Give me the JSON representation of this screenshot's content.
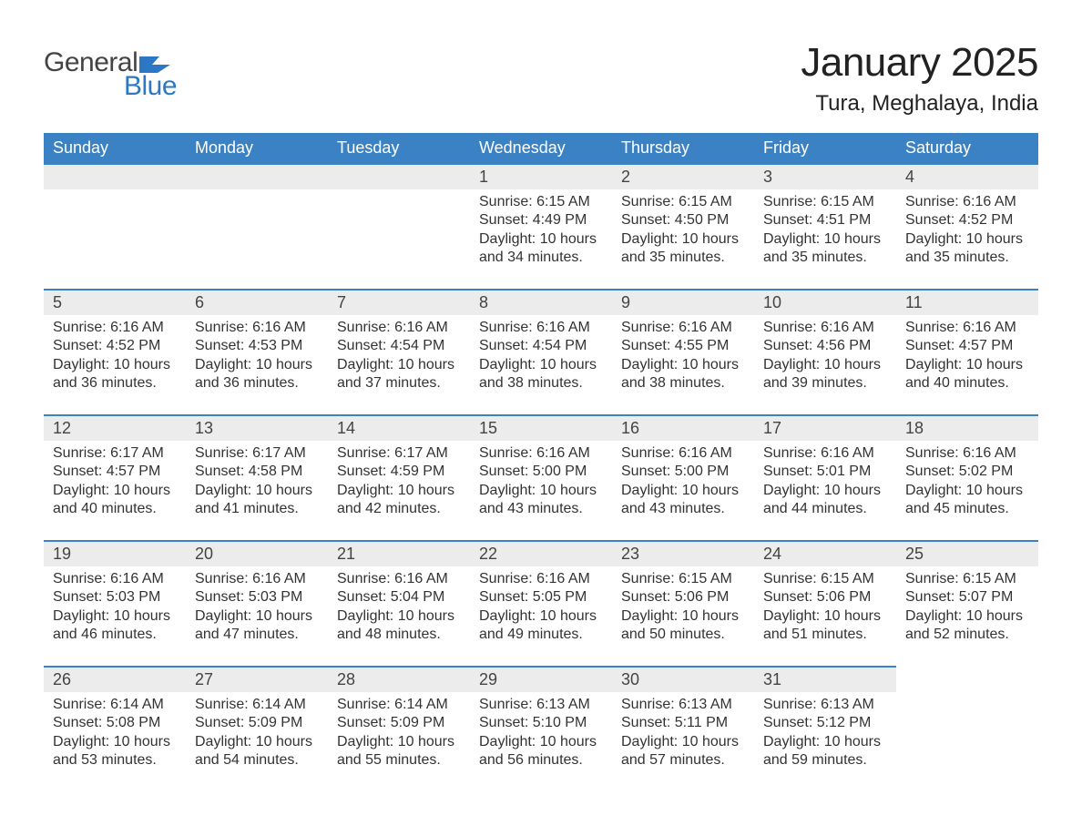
{
  "logo": {
    "word1": "General",
    "word2": "Blue",
    "accent_color": "#2d78c4",
    "text_color": "#444444"
  },
  "title": "January 2025",
  "subtitle": "Tura, Meghalaya, India",
  "colors": {
    "header_bg": "#3b82c4",
    "header_fg": "#ffffff",
    "daynum_bg": "#ececec",
    "row_border": "#3b82c4",
    "body_text": "#333333",
    "page_bg": "#ffffff"
  },
  "typography": {
    "title_fontsize": 44,
    "subtitle_fontsize": 24,
    "header_fontsize": 18,
    "daynum_fontsize": 18,
    "body_fontsize": 16
  },
  "weekdays": [
    "Sunday",
    "Monday",
    "Tuesday",
    "Wednesday",
    "Thursday",
    "Friday",
    "Saturday"
  ],
  "weeks": [
    [
      null,
      null,
      null,
      {
        "d": "1",
        "sr": "Sunrise: 6:15 AM",
        "ss": "Sunset: 4:49 PM",
        "dl1": "Daylight: 10 hours",
        "dl2": "and 34 minutes."
      },
      {
        "d": "2",
        "sr": "Sunrise: 6:15 AM",
        "ss": "Sunset: 4:50 PM",
        "dl1": "Daylight: 10 hours",
        "dl2": "and 35 minutes."
      },
      {
        "d": "3",
        "sr": "Sunrise: 6:15 AM",
        "ss": "Sunset: 4:51 PM",
        "dl1": "Daylight: 10 hours",
        "dl2": "and 35 minutes."
      },
      {
        "d": "4",
        "sr": "Sunrise: 6:16 AM",
        "ss": "Sunset: 4:52 PM",
        "dl1": "Daylight: 10 hours",
        "dl2": "and 35 minutes."
      }
    ],
    [
      {
        "d": "5",
        "sr": "Sunrise: 6:16 AM",
        "ss": "Sunset: 4:52 PM",
        "dl1": "Daylight: 10 hours",
        "dl2": "and 36 minutes."
      },
      {
        "d": "6",
        "sr": "Sunrise: 6:16 AM",
        "ss": "Sunset: 4:53 PM",
        "dl1": "Daylight: 10 hours",
        "dl2": "and 36 minutes."
      },
      {
        "d": "7",
        "sr": "Sunrise: 6:16 AM",
        "ss": "Sunset: 4:54 PM",
        "dl1": "Daylight: 10 hours",
        "dl2": "and 37 minutes."
      },
      {
        "d": "8",
        "sr": "Sunrise: 6:16 AM",
        "ss": "Sunset: 4:54 PM",
        "dl1": "Daylight: 10 hours",
        "dl2": "and 38 minutes."
      },
      {
        "d": "9",
        "sr": "Sunrise: 6:16 AM",
        "ss": "Sunset: 4:55 PM",
        "dl1": "Daylight: 10 hours",
        "dl2": "and 38 minutes."
      },
      {
        "d": "10",
        "sr": "Sunrise: 6:16 AM",
        "ss": "Sunset: 4:56 PM",
        "dl1": "Daylight: 10 hours",
        "dl2": "and 39 minutes."
      },
      {
        "d": "11",
        "sr": "Sunrise: 6:16 AM",
        "ss": "Sunset: 4:57 PM",
        "dl1": "Daylight: 10 hours",
        "dl2": "and 40 minutes."
      }
    ],
    [
      {
        "d": "12",
        "sr": "Sunrise: 6:17 AM",
        "ss": "Sunset: 4:57 PM",
        "dl1": "Daylight: 10 hours",
        "dl2": "and 40 minutes."
      },
      {
        "d": "13",
        "sr": "Sunrise: 6:17 AM",
        "ss": "Sunset: 4:58 PM",
        "dl1": "Daylight: 10 hours",
        "dl2": "and 41 minutes."
      },
      {
        "d": "14",
        "sr": "Sunrise: 6:17 AM",
        "ss": "Sunset: 4:59 PM",
        "dl1": "Daylight: 10 hours",
        "dl2": "and 42 minutes."
      },
      {
        "d": "15",
        "sr": "Sunrise: 6:16 AM",
        "ss": "Sunset: 5:00 PM",
        "dl1": "Daylight: 10 hours",
        "dl2": "and 43 minutes."
      },
      {
        "d": "16",
        "sr": "Sunrise: 6:16 AM",
        "ss": "Sunset: 5:00 PM",
        "dl1": "Daylight: 10 hours",
        "dl2": "and 43 minutes."
      },
      {
        "d": "17",
        "sr": "Sunrise: 6:16 AM",
        "ss": "Sunset: 5:01 PM",
        "dl1": "Daylight: 10 hours",
        "dl2": "and 44 minutes."
      },
      {
        "d": "18",
        "sr": "Sunrise: 6:16 AM",
        "ss": "Sunset: 5:02 PM",
        "dl1": "Daylight: 10 hours",
        "dl2": "and 45 minutes."
      }
    ],
    [
      {
        "d": "19",
        "sr": "Sunrise: 6:16 AM",
        "ss": "Sunset: 5:03 PM",
        "dl1": "Daylight: 10 hours",
        "dl2": "and 46 minutes."
      },
      {
        "d": "20",
        "sr": "Sunrise: 6:16 AM",
        "ss": "Sunset: 5:03 PM",
        "dl1": "Daylight: 10 hours",
        "dl2": "and 47 minutes."
      },
      {
        "d": "21",
        "sr": "Sunrise: 6:16 AM",
        "ss": "Sunset: 5:04 PM",
        "dl1": "Daylight: 10 hours",
        "dl2": "and 48 minutes."
      },
      {
        "d": "22",
        "sr": "Sunrise: 6:16 AM",
        "ss": "Sunset: 5:05 PM",
        "dl1": "Daylight: 10 hours",
        "dl2": "and 49 minutes."
      },
      {
        "d": "23",
        "sr": "Sunrise: 6:15 AM",
        "ss": "Sunset: 5:06 PM",
        "dl1": "Daylight: 10 hours",
        "dl2": "and 50 minutes."
      },
      {
        "d": "24",
        "sr": "Sunrise: 6:15 AM",
        "ss": "Sunset: 5:06 PM",
        "dl1": "Daylight: 10 hours",
        "dl2": "and 51 minutes."
      },
      {
        "d": "25",
        "sr": "Sunrise: 6:15 AM",
        "ss": "Sunset: 5:07 PM",
        "dl1": "Daylight: 10 hours",
        "dl2": "and 52 minutes."
      }
    ],
    [
      {
        "d": "26",
        "sr": "Sunrise: 6:14 AM",
        "ss": "Sunset: 5:08 PM",
        "dl1": "Daylight: 10 hours",
        "dl2": "and 53 minutes."
      },
      {
        "d": "27",
        "sr": "Sunrise: 6:14 AM",
        "ss": "Sunset: 5:09 PM",
        "dl1": "Daylight: 10 hours",
        "dl2": "and 54 minutes."
      },
      {
        "d": "28",
        "sr": "Sunrise: 6:14 AM",
        "ss": "Sunset: 5:09 PM",
        "dl1": "Daylight: 10 hours",
        "dl2": "and 55 minutes."
      },
      {
        "d": "29",
        "sr": "Sunrise: 6:13 AM",
        "ss": "Sunset: 5:10 PM",
        "dl1": "Daylight: 10 hours",
        "dl2": "and 56 minutes."
      },
      {
        "d": "30",
        "sr": "Sunrise: 6:13 AM",
        "ss": "Sunset: 5:11 PM",
        "dl1": "Daylight: 10 hours",
        "dl2": "and 57 minutes."
      },
      {
        "d": "31",
        "sr": "Sunrise: 6:13 AM",
        "ss": "Sunset: 5:12 PM",
        "dl1": "Daylight: 10 hours",
        "dl2": "and 59 minutes."
      },
      null
    ]
  ]
}
